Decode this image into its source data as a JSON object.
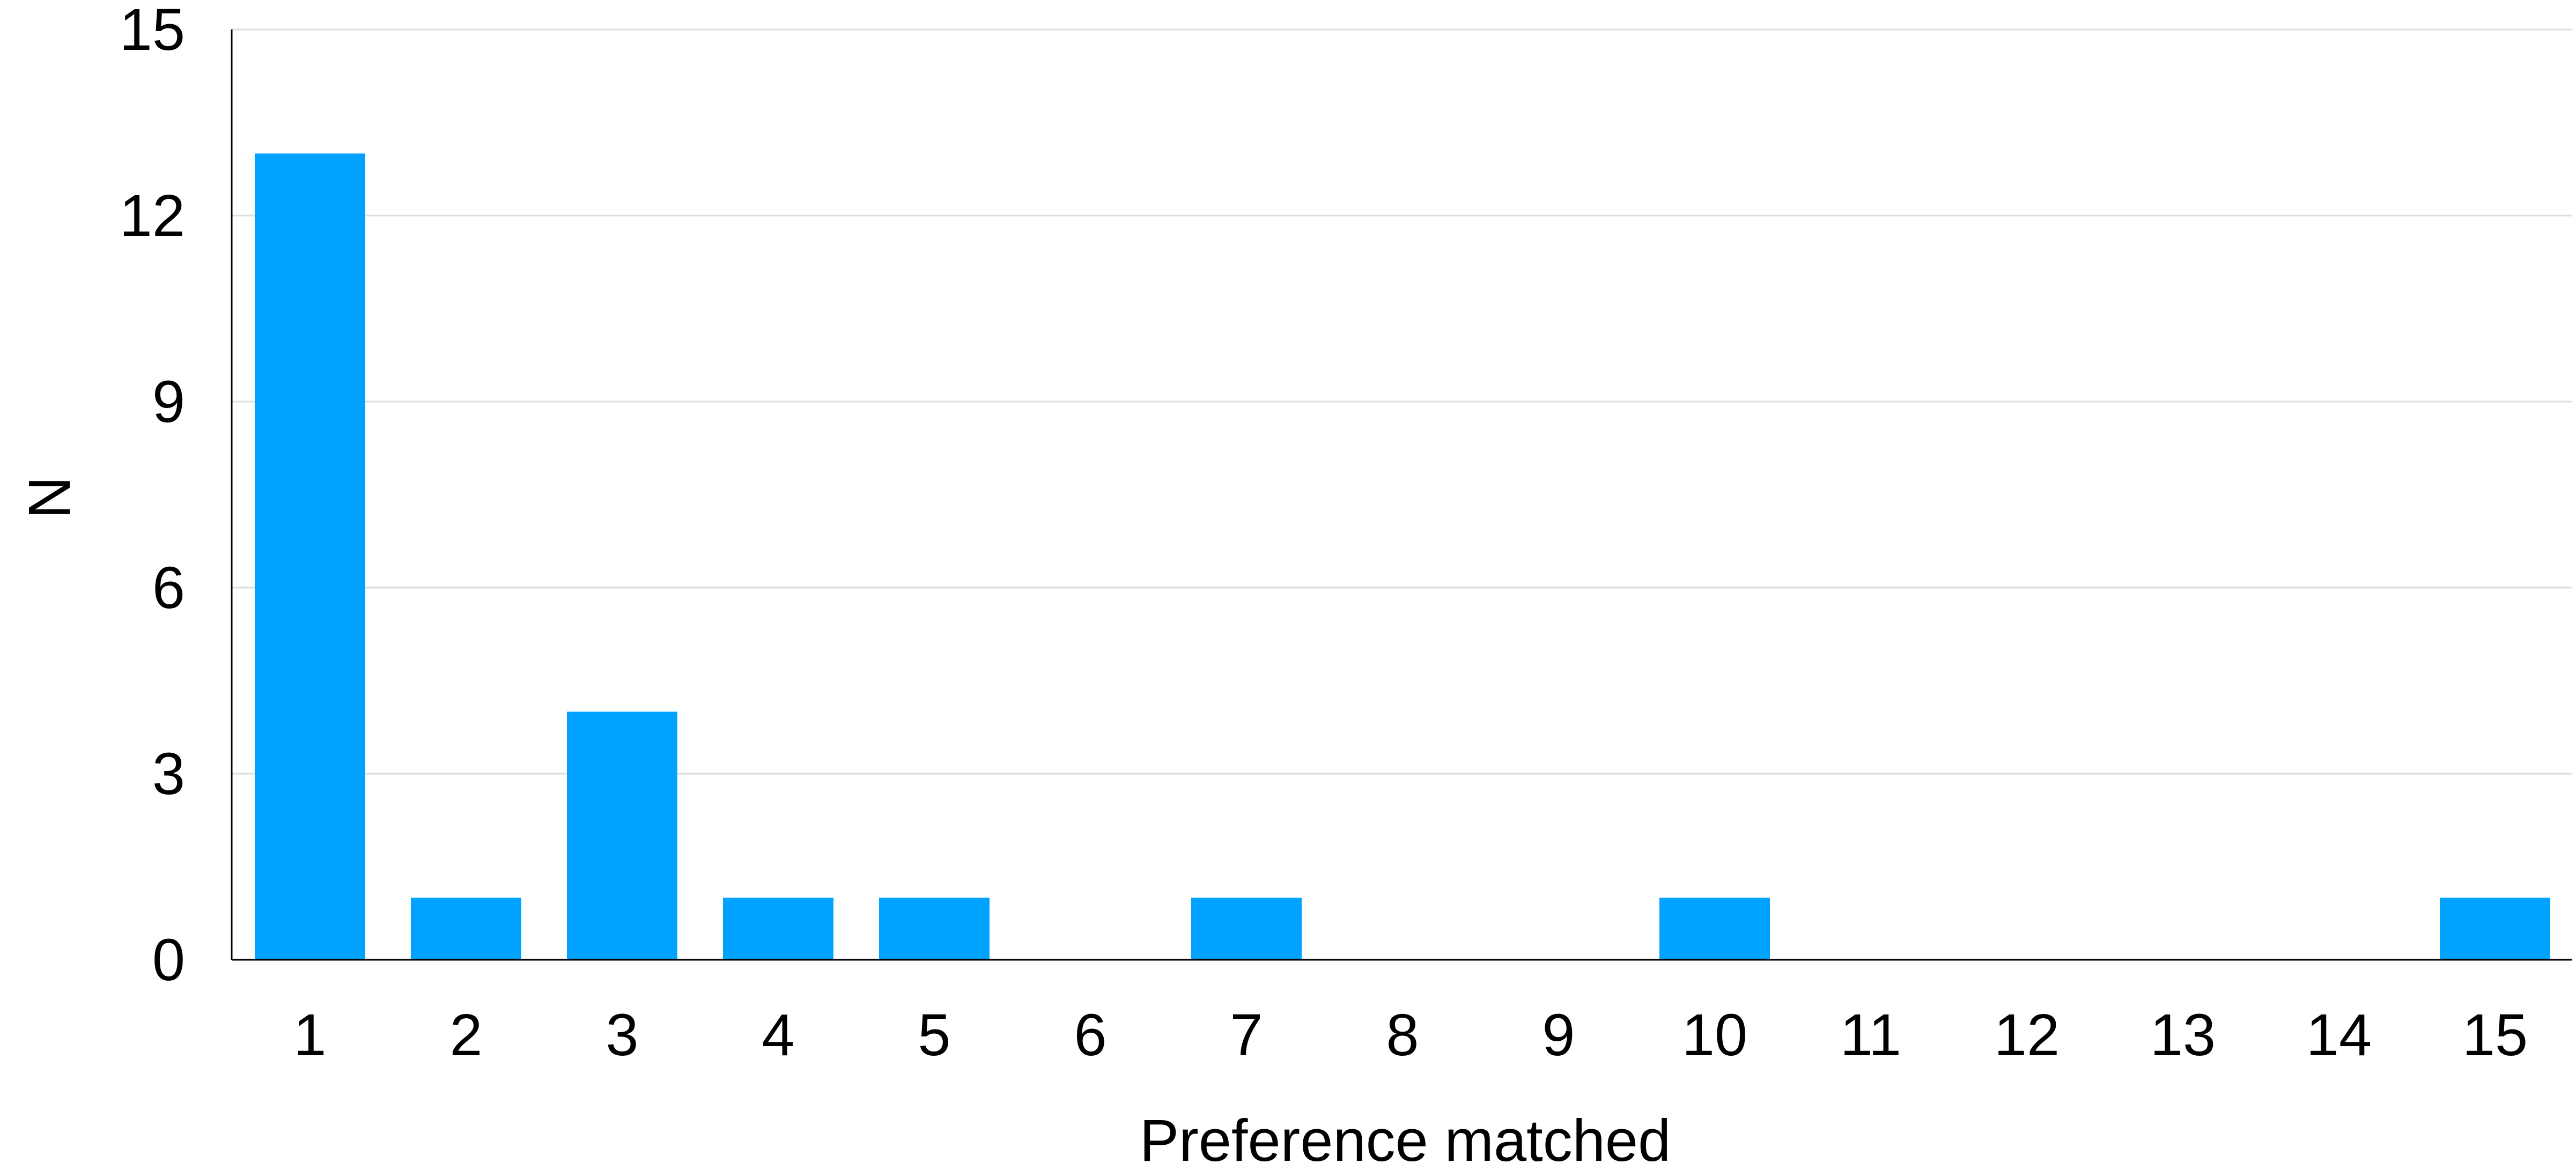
{
  "chart_data": {
    "type": "bar",
    "title": "",
    "xlabel": "Preference matched",
    "ylabel": "N",
    "categories": [
      "1",
      "2",
      "3",
      "4",
      "5",
      "6",
      "7",
      "8",
      "9",
      "10",
      "11",
      "12",
      "13",
      "14",
      "15"
    ],
    "values": [
      13,
      1,
      4,
      1,
      1,
      0,
      1,
      0,
      0,
      1,
      0,
      0,
      0,
      0,
      1
    ],
    "ylim": [
      0,
      15
    ],
    "yticks": [
      "0",
      "3",
      "6",
      "9",
      "12",
      "15"
    ],
    "grid": true,
    "legend": "none",
    "colors": {
      "bar": "#00a2ff",
      "grid": "#dddddd",
      "axis": "#000000",
      "text": "#000000"
    }
  }
}
